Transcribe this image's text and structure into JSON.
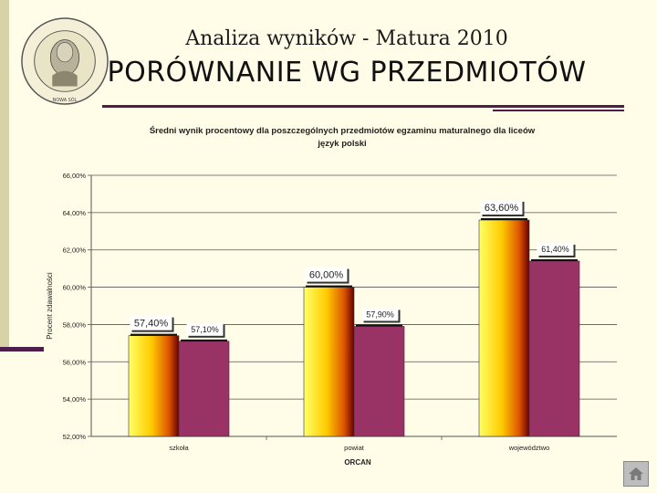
{
  "header": {
    "title": "Analiza wyników  - Matura 2010",
    "subtitle": "PORÓWNANIE WG PRZEDMIOTÓW"
  },
  "logo": {
    "text": "I LICEUM OGÓLNOKSZTAŁCĄCE IM. HENRYKA SIENKIEWICZA",
    "footer": "NOWA SÓL"
  },
  "colors": {
    "background": "#fffde8",
    "accent": "#4e1d4a",
    "bar_a": "#ffcc00",
    "bar_b": "#993366"
  },
  "chart_data": {
    "type": "bar",
    "title": "Średni wynik procentowy dla poszczególnych przedmiotów egzaminu maturalnego dla liceów",
    "subtitle": "język polski",
    "xlabel": "ORCAN",
    "ylabel": "Procent zdawalności",
    "ylim": [
      52,
      66
    ],
    "yticks": [
      "52,00%",
      "54,00%",
      "56,00%",
      "58,00%",
      "60,00%",
      "62,00%",
      "64,00%",
      "66,00%"
    ],
    "categories": [
      "szkoła",
      "powiat",
      "województwo"
    ],
    "series": [
      {
        "values": [
          57.4,
          60.0,
          63.6
        ],
        "labels": [
          "57,40%",
          "60,00%",
          "63,60%"
        ]
      },
      {
        "values": [
          57.1,
          57.9,
          61.4
        ],
        "labels": [
          "57,10%",
          "57,90%",
          "61,40%"
        ]
      }
    ],
    "grid": true,
    "legend": "none"
  },
  "nav": {
    "home_icon": "home-icon"
  }
}
